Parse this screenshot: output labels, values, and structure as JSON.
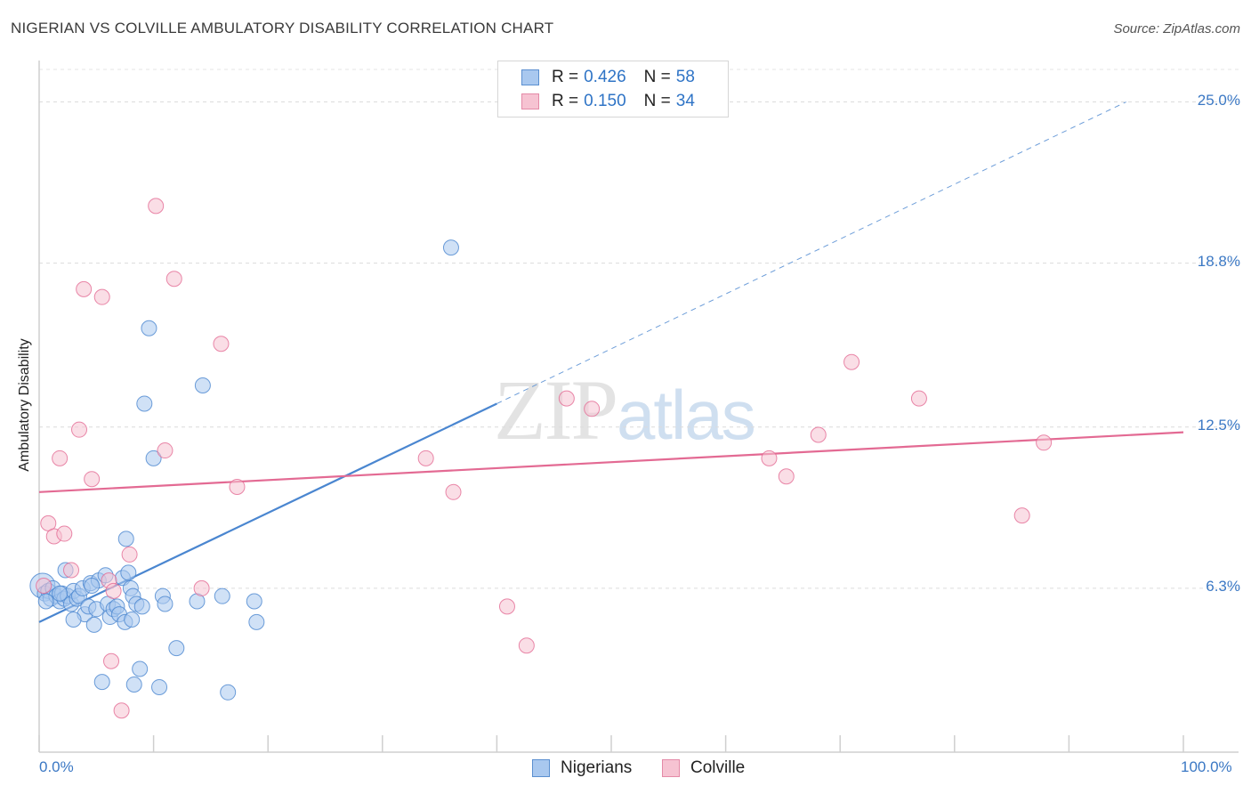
{
  "header": {
    "title": "NIGERIAN VS COLVILLE AMBULATORY DISABILITY CORRELATION CHART",
    "source": "Source: ZipAtlas.com"
  },
  "watermark": {
    "zip": "ZIP",
    "atlas": "atlas"
  },
  "legend": {
    "rows": [
      {
        "r_label": "R =",
        "r_value": "0.426",
        "n_label": "N =",
        "n_value": "58",
        "color": "#a9c8ef",
        "border": "#5b8fd0"
      },
      {
        "r_label": "R =",
        "r_value": "0.150",
        "n_label": "N =",
        "n_value": "34",
        "color": "#f6c3d2",
        "border": "#e48aa7"
      }
    ]
  },
  "bottom_legend": [
    {
      "name": "Nigerians",
      "color": "#a9c8ef",
      "border": "#5b8fd0"
    },
    {
      "name": "Colville",
      "color": "#f6c3d2",
      "border": "#e48aa7"
    }
  ],
  "chart_data": {
    "type": "scatter",
    "title": "NIGERIAN VS COLVILLE AMBULATORY DISABILITY CORRELATION CHART",
    "xlabel": "",
    "ylabel": "Ambulatory Disability",
    "xlim": [
      0,
      100
    ],
    "ylim": [
      0,
      26.25
    ],
    "x_tick_labels": [
      "0.0%",
      "100.0%"
    ],
    "y_ticks": [
      6.3,
      12.5,
      18.8,
      25.0
    ],
    "y_tick_labels": [
      "6.3%",
      "12.5%",
      "18.8%",
      "25.0%"
    ],
    "series": [
      {
        "name": "Nigerians",
        "color": "#4a86d0",
        "fill": "#a9c8ef",
        "trend": {
          "x0": 0,
          "y0": 5.0,
          "x1": 40,
          "y1": 13.4,
          "dash_x1": 95,
          "dash_y1": 25.0
        },
        "points": [
          [
            0.3,
            6.4
          ],
          [
            0.5,
            6.1
          ],
          [
            0.8,
            6.2
          ],
          [
            1.0,
            5.9
          ],
          [
            1.2,
            6.3
          ],
          [
            1.5,
            6.0
          ],
          [
            1.8,
            5.8
          ],
          [
            2.0,
            6.1
          ],
          [
            2.2,
            5.9
          ],
          [
            2.5,
            6.0
          ],
          [
            2.8,
            5.7
          ],
          [
            3.0,
            6.2
          ],
          [
            3.3,
            5.9
          ],
          [
            3.5,
            6.0
          ],
          [
            3.8,
            6.3
          ],
          [
            4.0,
            5.3
          ],
          [
            4.3,
            5.6
          ],
          [
            4.5,
            6.5
          ],
          [
            4.8,
            4.9
          ],
          [
            5.0,
            5.5
          ],
          [
            5.2,
            6.6
          ],
          [
            5.5,
            2.7
          ],
          [
            5.8,
            6.8
          ],
          [
            6.0,
            5.7
          ],
          [
            6.2,
            5.2
          ],
          [
            6.5,
            5.5
          ],
          [
            6.8,
            5.6
          ],
          [
            7.0,
            5.3
          ],
          [
            7.3,
            6.7
          ],
          [
            7.5,
            5.0
          ],
          [
            7.6,
            8.2
          ],
          [
            7.8,
            6.9
          ],
          [
            8.0,
            6.3
          ],
          [
            8.2,
            6.0
          ],
          [
            8.1,
            5.1
          ],
          [
            8.3,
            2.6
          ],
          [
            8.5,
            5.7
          ],
          [
            8.8,
            3.2
          ],
          [
            9.0,
            5.6
          ],
          [
            9.2,
            13.4
          ],
          [
            9.6,
            16.3
          ],
          [
            10.0,
            11.3
          ],
          [
            10.5,
            2.5
          ],
          [
            10.8,
            6.0
          ],
          [
            11.0,
            5.7
          ],
          [
            12.0,
            4.0
          ],
          [
            13.8,
            5.8
          ],
          [
            14.3,
            14.1
          ],
          [
            16.0,
            6.0
          ],
          [
            16.5,
            2.3
          ],
          [
            18.8,
            5.8
          ],
          [
            19.0,
            5.0
          ],
          [
            36.0,
            19.4
          ],
          [
            3.0,
            5.1
          ],
          [
            1.8,
            6.1
          ],
          [
            0.6,
            5.8
          ],
          [
            4.6,
            6.4
          ],
          [
            2.3,
            7.0
          ]
        ]
      },
      {
        "name": "Colville",
        "color": "#e36a93",
        "fill": "#f6c3d2",
        "trend": {
          "x0": 0,
          "y0": 10.0,
          "x1": 100,
          "y1": 12.3
        },
        "points": [
          [
            0.8,
            8.8
          ],
          [
            1.3,
            8.3
          ],
          [
            1.8,
            11.3
          ],
          [
            2.2,
            8.4
          ],
          [
            2.8,
            7.0
          ],
          [
            3.5,
            12.4
          ],
          [
            3.9,
            17.8
          ],
          [
            4.6,
            10.5
          ],
          [
            5.5,
            17.5
          ],
          [
            6.1,
            6.6
          ],
          [
            6.3,
            3.5
          ],
          [
            6.5,
            6.2
          ],
          [
            7.2,
            1.6
          ],
          [
            7.9,
            7.6
          ],
          [
            10.2,
            21.0
          ],
          [
            11.0,
            11.6
          ],
          [
            11.8,
            18.2
          ],
          [
            14.2,
            6.3
          ],
          [
            15.9,
            15.7
          ],
          [
            17.3,
            10.2
          ],
          [
            33.8,
            11.3
          ],
          [
            36.2,
            10.0
          ],
          [
            40.9,
            5.6
          ],
          [
            42.6,
            4.1
          ],
          [
            46.1,
            13.6
          ],
          [
            48.3,
            13.2
          ],
          [
            63.8,
            11.3
          ],
          [
            65.3,
            10.6
          ],
          [
            68.1,
            12.2
          ],
          [
            71.0,
            15.0
          ],
          [
            76.9,
            13.6
          ],
          [
            85.9,
            9.1
          ],
          [
            87.8,
            11.9
          ],
          [
            0.4,
            6.4
          ]
        ]
      }
    ]
  }
}
